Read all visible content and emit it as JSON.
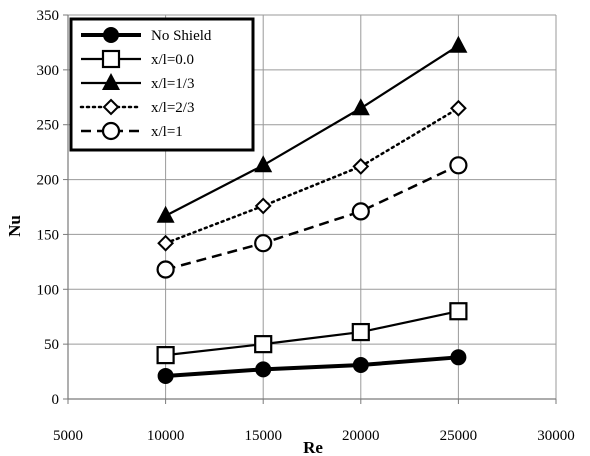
{
  "chart_data": {
    "type": "line",
    "title": "",
    "xlabel": "Re",
    "ylabel": "Nu",
    "xlim": [
      5000,
      30000
    ],
    "ylim": [
      0,
      350
    ],
    "xticks": [
      5000,
      10000,
      15000,
      20000,
      25000,
      30000
    ],
    "yticks": [
      0,
      50,
      100,
      150,
      200,
      250,
      300,
      350
    ],
    "grid": true,
    "legend_position": "top-left",
    "x": [
      10000,
      15000,
      20000,
      25000
    ],
    "series": [
      {
        "name": "No Shield",
        "values": [
          21,
          27,
          31,
          38
        ],
        "marker": "filled-circle",
        "line": "solid-thick",
        "color": "#000000"
      },
      {
        "name": "x/l=0.0",
        "values": [
          40,
          50,
          61,
          80
        ],
        "marker": "open-square",
        "line": "solid",
        "color": "#000000"
      },
      {
        "name": "x/l=1/3",
        "values": [
          167,
          213,
          265,
          322
        ],
        "marker": "filled-triangle",
        "line": "solid",
        "color": "#000000"
      },
      {
        "name": "x/l=2/3",
        "values": [
          142,
          176,
          212,
          265
        ],
        "marker": "open-diamond",
        "line": "dotted",
        "color": "#000000"
      },
      {
        "name": "x/l=1",
        "values": [
          118,
          142,
          171,
          213
        ],
        "marker": "open-circle",
        "line": "dashed",
        "color": "#000000"
      }
    ]
  }
}
